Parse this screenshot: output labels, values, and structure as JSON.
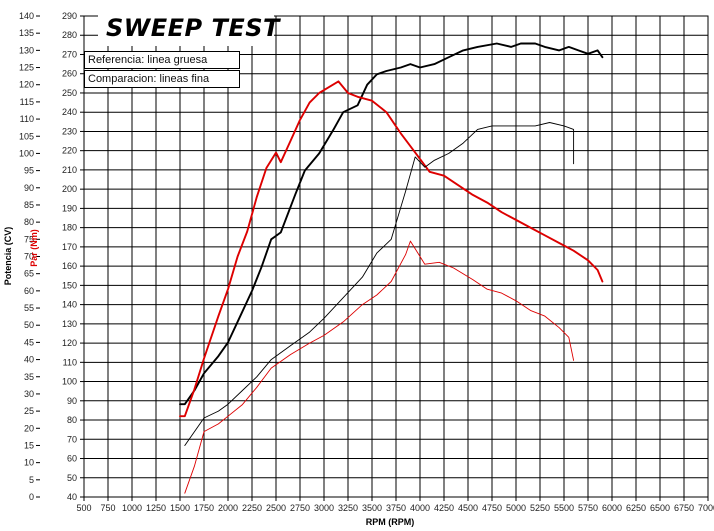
{
  "chart_data": {
    "type": "line",
    "title": "SWEEP TEST",
    "legend": {
      "reference": "Referencia: linea gruesa",
      "comparison": "Comparacion: lineas fina"
    },
    "xlabel": "RPM (RPM)",
    "ylabel_left": "Potencia (CV)",
    "ylabel_right": "Par (Nm)",
    "xlim": [
      500,
      7000
    ],
    "x_ticks": [
      500,
      750,
      1000,
      1250,
      1500,
      1750,
      2000,
      2250,
      2500,
      2750,
      3000,
      3250,
      3500,
      3750,
      4000,
      4250,
      4500,
      4750,
      5000,
      5250,
      5500,
      5750,
      6000,
      6250,
      6500,
      6750,
      7000
    ],
    "ylim_power": [
      0,
      140
    ],
    "power_ticks": [
      0,
      5,
      10,
      15,
      20,
      25,
      30,
      35,
      40,
      45,
      50,
      55,
      60,
      65,
      70,
      75,
      80,
      85,
      90,
      95,
      100,
      105,
      110,
      115,
      120,
      125,
      130,
      135,
      140
    ],
    "ylim_torque": [
      40,
      290
    ],
    "torque_ticks": [
      40,
      50,
      60,
      70,
      80,
      90,
      100,
      110,
      120,
      130,
      140,
      150,
      160,
      170,
      180,
      190,
      200,
      210,
      220,
      230,
      240,
      250,
      260,
      270,
      280,
      290
    ],
    "series": [
      {
        "name": "Potencia referencia (linea gruesa)",
        "axis": "power",
        "color": "#000000",
        "weight": "thick",
        "points": [
          [
            1500,
            27
          ],
          [
            1550,
            27
          ],
          [
            1650,
            31
          ],
          [
            1750,
            36
          ],
          [
            1900,
            41
          ],
          [
            2000,
            45
          ],
          [
            2100,
            51
          ],
          [
            2250,
            60
          ],
          [
            2350,
            67
          ],
          [
            2450,
            75
          ],
          [
            2500,
            76
          ],
          [
            2550,
            77
          ],
          [
            2700,
            88
          ],
          [
            2800,
            95
          ],
          [
            2950,
            100
          ],
          [
            3100,
            107
          ],
          [
            3200,
            112
          ],
          [
            3350,
            114
          ],
          [
            3450,
            120
          ],
          [
            3550,
            123
          ],
          [
            3650,
            124
          ],
          [
            3800,
            125
          ],
          [
            3900,
            126
          ],
          [
            4000,
            125
          ],
          [
            4150,
            126
          ],
          [
            4300,
            128
          ],
          [
            4450,
            130
          ],
          [
            4600,
            131
          ],
          [
            4800,
            132
          ],
          [
            4950,
            131
          ],
          [
            5050,
            132
          ],
          [
            5200,
            132
          ],
          [
            5300,
            131
          ],
          [
            5450,
            130
          ],
          [
            5550,
            131
          ],
          [
            5650,
            130
          ],
          [
            5750,
            129
          ],
          [
            5850,
            130
          ],
          [
            5900,
            128
          ]
        ]
      },
      {
        "name": "Par referencia (linea gruesa)",
        "axis": "torque",
        "color": "#dd0000",
        "weight": "thick",
        "points": [
          [
            1500,
            82
          ],
          [
            1550,
            82
          ],
          [
            1650,
            96
          ],
          [
            1750,
            112
          ],
          [
            1900,
            134
          ],
          [
            2000,
            148
          ],
          [
            2100,
            165
          ],
          [
            2200,
            178
          ],
          [
            2300,
            196
          ],
          [
            2400,
            211
          ],
          [
            2500,
            219
          ],
          [
            2550,
            214
          ],
          [
            2650,
            225
          ],
          [
            2750,
            236
          ],
          [
            2850,
            245
          ],
          [
            2950,
            250
          ],
          [
            3050,
            253
          ],
          [
            3150,
            256
          ],
          [
            3250,
            250
          ],
          [
            3350,
            248
          ],
          [
            3500,
            246
          ],
          [
            3650,
            240
          ],
          [
            3800,
            229
          ],
          [
            3950,
            219
          ],
          [
            4100,
            209
          ],
          [
            4250,
            207
          ],
          [
            4400,
            202
          ],
          [
            4550,
            197
          ],
          [
            4700,
            193
          ],
          [
            4850,
            188
          ],
          [
            5000,
            184
          ],
          [
            5150,
            180
          ],
          [
            5300,
            176
          ],
          [
            5450,
            172
          ],
          [
            5600,
            168
          ],
          [
            5750,
            163
          ],
          [
            5850,
            158
          ],
          [
            5900,
            152
          ]
        ]
      },
      {
        "name": "Potencia comparacion (lineas fina)",
        "axis": "power",
        "color": "#000000",
        "weight": "thin",
        "points": [
          [
            1550,
            15
          ],
          [
            1650,
            19
          ],
          [
            1750,
            23
          ],
          [
            1900,
            25
          ],
          [
            2000,
            27
          ],
          [
            2150,
            31
          ],
          [
            2300,
            35
          ],
          [
            2450,
            40
          ],
          [
            2650,
            44
          ],
          [
            2850,
            48
          ],
          [
            3000,
            52
          ],
          [
            3200,
            58
          ],
          [
            3400,
            64
          ],
          [
            3550,
            71
          ],
          [
            3700,
            75
          ],
          [
            3850,
            89
          ],
          [
            3950,
            99
          ],
          [
            4050,
            96
          ],
          [
            4150,
            98
          ],
          [
            4300,
            100
          ],
          [
            4450,
            103
          ],
          [
            4600,
            107
          ],
          [
            4750,
            108
          ],
          [
            4900,
            108
          ],
          [
            5050,
            108
          ],
          [
            5200,
            108
          ],
          [
            5350,
            109
          ],
          [
            5500,
            108
          ],
          [
            5600,
            107
          ],
          [
            5600,
            97
          ]
        ]
      },
      {
        "name": "Par comparacion (lineas fina)",
        "axis": "torque",
        "color": "#dd0000",
        "weight": "thin",
        "points": [
          [
            1550,
            42
          ],
          [
            1650,
            56
          ],
          [
            1750,
            74
          ],
          [
            1900,
            78
          ],
          [
            2000,
            82
          ],
          [
            2150,
            88
          ],
          [
            2300,
            97
          ],
          [
            2450,
            107
          ],
          [
            2650,
            114
          ],
          [
            2850,
            120
          ],
          [
            3000,
            124
          ],
          [
            3200,
            131
          ],
          [
            3400,
            140
          ],
          [
            3550,
            145
          ],
          [
            3700,
            152
          ],
          [
            3850,
            166
          ],
          [
            3900,
            173
          ],
          [
            4050,
            161
          ],
          [
            4200,
            162
          ],
          [
            4350,
            159
          ],
          [
            4550,
            153
          ],
          [
            4700,
            148
          ],
          [
            4850,
            146
          ],
          [
            5000,
            142
          ],
          [
            5150,
            137
          ],
          [
            5300,
            134
          ],
          [
            5450,
            128
          ],
          [
            5550,
            123
          ],
          [
            5600,
            111
          ]
        ]
      }
    ]
  }
}
